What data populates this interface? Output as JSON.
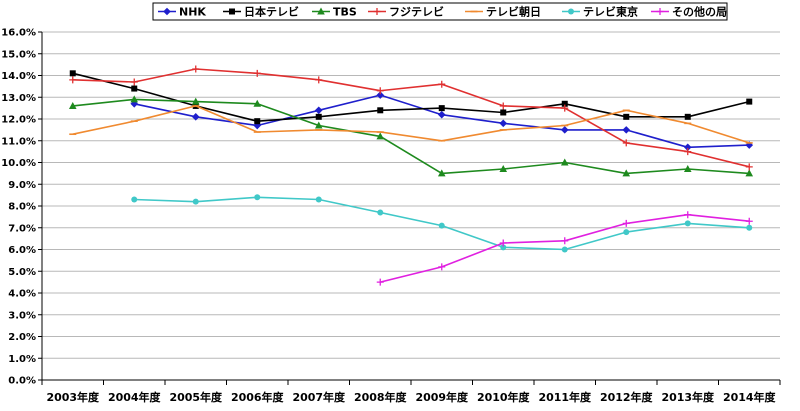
{
  "chart_data": {
    "type": "line",
    "title": "",
    "xlabel": "",
    "ylabel": "",
    "ylim": [
      0,
      16
    ],
    "y_tick_step": 1,
    "y_tick_labels": [
      "0.0%",
      "1.0%",
      "2.0%",
      "3.0%",
      "4.0%",
      "5.0%",
      "6.0%",
      "7.0%",
      "8.0%",
      "9.0%",
      "10.0%",
      "11.0%",
      "12.0%",
      "13.0%",
      "14.0%",
      "15.0%",
      "16.0%"
    ],
    "grid": "horizontal",
    "legend_position": "top",
    "categories": [
      "2003年度",
      "2004年度",
      "2005年度",
      "2006年度",
      "2007年度",
      "2008年度",
      "2009年度",
      "2010年度",
      "2011年度",
      "2012年度",
      "2013年度",
      "2014年度"
    ],
    "series": [
      {
        "name": "NHK",
        "color": "#1f1fcc",
        "marker": "diamond",
        "values": [
          null,
          12.7,
          12.1,
          11.7,
          12.4,
          13.1,
          12.2,
          11.8,
          11.5,
          11.5,
          10.7,
          10.8
        ]
      },
      {
        "name": "日本テレビ",
        "color": "#000000",
        "marker": "square",
        "values": [
          14.1,
          13.4,
          12.6,
          11.9,
          12.1,
          12.4,
          12.5,
          12.3,
          12.7,
          12.1,
          12.1,
          12.8
        ]
      },
      {
        "name": "TBS",
        "color": "#1e8a1e",
        "marker": "triangle",
        "values": [
          12.6,
          12.9,
          12.8,
          12.7,
          11.7,
          11.2,
          9.5,
          9.7,
          10.0,
          9.5,
          9.7,
          9.5
        ]
      },
      {
        "name": "フジテレビ",
        "color": "#e03030",
        "marker": "plus",
        "values": [
          13.8,
          13.7,
          14.3,
          14.1,
          13.8,
          13.3,
          13.6,
          12.6,
          12.5,
          10.9,
          10.5,
          9.8
        ]
      },
      {
        "name": "テレビ朝日",
        "color": "#f08a30",
        "marker": "dash",
        "values": [
          11.3,
          11.9,
          12.6,
          11.4,
          11.5,
          11.4,
          11.0,
          11.5,
          11.7,
          12.4,
          11.8,
          10.9
        ]
      },
      {
        "name": "テレビ東京",
        "color": "#40c8c8",
        "marker": "circle",
        "values": [
          null,
          8.3,
          8.2,
          8.4,
          8.3,
          7.7,
          7.1,
          6.1,
          6.0,
          6.8,
          7.2,
          7.0
        ]
      },
      {
        "name": "その他の局",
        "color": "#e020e0",
        "marker": "plus",
        "values": [
          null,
          null,
          null,
          null,
          null,
          4.5,
          5.2,
          6.3,
          6.4,
          7.2,
          7.6,
          7.3
        ]
      }
    ]
  }
}
